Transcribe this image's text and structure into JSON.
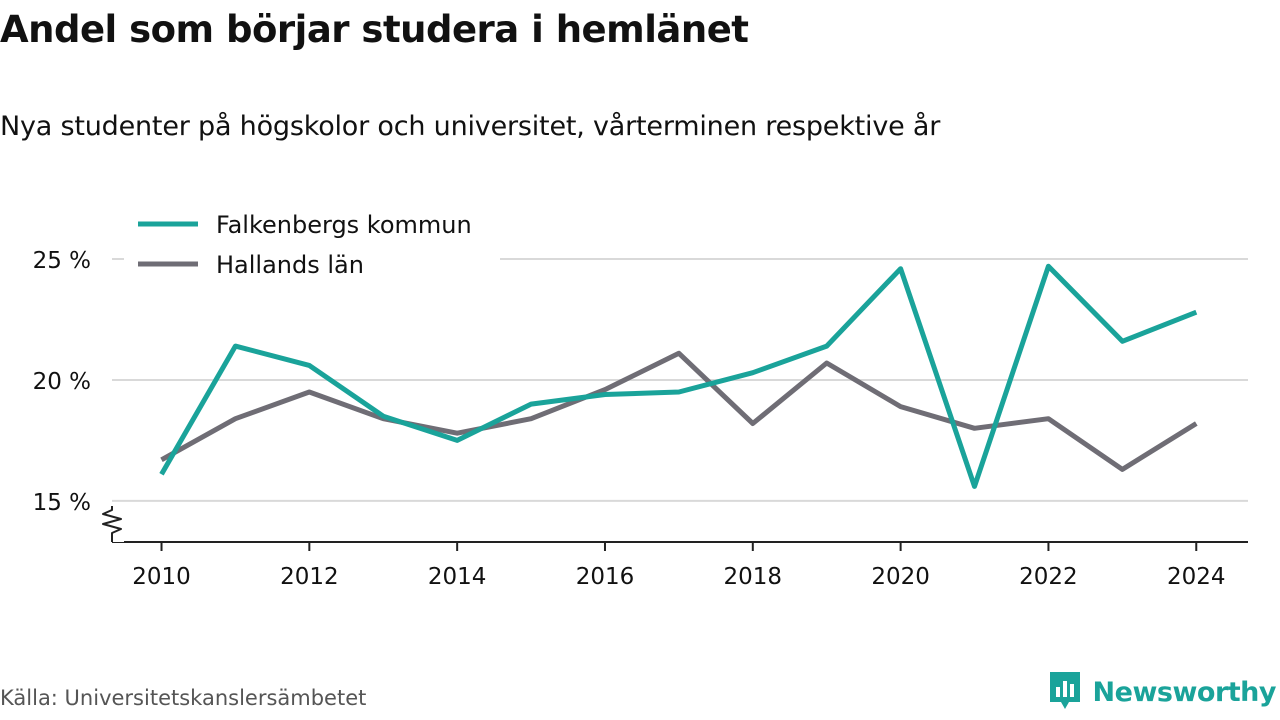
{
  "title": "Andel som börjar studera i hemlänet",
  "subtitle": "Nya studenter på högskolor och universitet, vårterminen respektive år",
  "source": "Källa: Universitetskanslersämbetet",
  "brand": {
    "name": "Newsworthy",
    "icon": "newsworthy-logo-icon"
  },
  "colors": {
    "falkenberg": "#1aa39a",
    "halland": "#6f6d75",
    "grid": "#d9d9d9",
    "axis": "#222222"
  },
  "chart_data": {
    "type": "line",
    "title": "Andel som börjar studera i hemlänet",
    "subtitle": "Nya studenter på högskolor och universitet, vårterminen respektive år",
    "x": [
      2010,
      2011,
      2012,
      2013,
      2014,
      2015,
      2016,
      2017,
      2018,
      2019,
      2020,
      2021,
      2022,
      2023,
      2024
    ],
    "series": [
      {
        "name": "Falkenbergs kommun",
        "color": "#1aa39a",
        "values": [
          16.1,
          21.4,
          20.6,
          18.5,
          17.5,
          19.0,
          19.4,
          19.5,
          20.3,
          21.4,
          24.6,
          15.6,
          24.7,
          21.6,
          22.8
        ]
      },
      {
        "name": "Hallands län",
        "color": "#6f6d75",
        "values": [
          16.7,
          18.4,
          19.5,
          18.4,
          17.8,
          18.4,
          19.6,
          21.1,
          18.2,
          20.7,
          18.9,
          18.0,
          18.4,
          16.3,
          18.2
        ]
      }
    ],
    "x_ticks": [
      "2010",
      "2012",
      "2014",
      "2016",
      "2018",
      "2020",
      "2022",
      "2024"
    ],
    "x_tick_values": [
      2010,
      2012,
      2014,
      2016,
      2018,
      2020,
      2022,
      2024
    ],
    "y_ticks": [
      "15 %",
      "20 %",
      "25 %"
    ],
    "y_tick_values": [
      15,
      20,
      25
    ],
    "xlim": [
      2009.33,
      2024.7
    ],
    "ylim": [
      13.3,
      26.2
    ],
    "y_axis_break": true,
    "grid": "horizontal",
    "legend_position": "top-left"
  }
}
